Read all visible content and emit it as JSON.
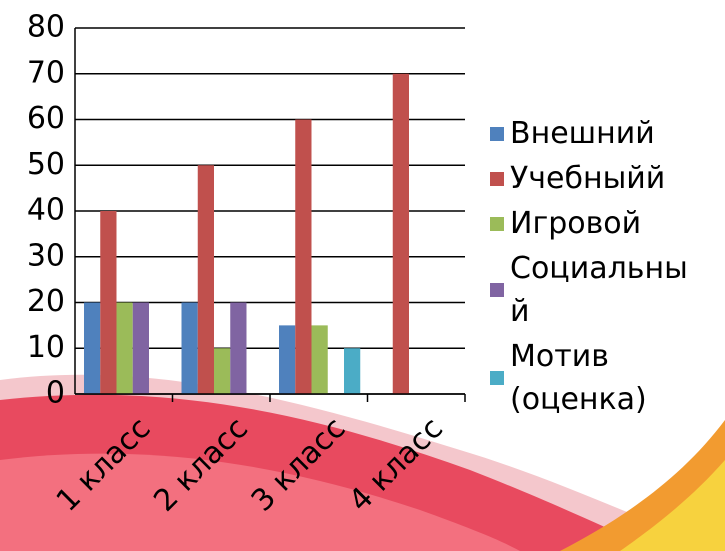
{
  "chart_data": {
    "type": "bar",
    "categories": [
      "1 класс",
      "2 класс",
      "3 класс",
      "4 класс"
    ],
    "series": [
      {
        "name": "Внешний",
        "color": "#4f81bd",
        "values": [
          20,
          20,
          15,
          0
        ]
      },
      {
        "name": "Учебныйй",
        "color": "#c0504d",
        "values": [
          40,
          50,
          60,
          70
        ]
      },
      {
        "name": "Игровой",
        "color": "#9bbb59",
        "values": [
          20,
          10,
          15,
          0
        ]
      },
      {
        "name": "Социальный",
        "color": "#8064a2",
        "values": [
          20,
          20,
          0,
          0
        ]
      },
      {
        "name": "Мотив (оценка)",
        "color": "#4bacc6",
        "values": [
          0,
          0,
          10,
          0
        ]
      }
    ],
    "ylim": [
      0,
      80
    ],
    "yticks": [
      0,
      10,
      20,
      30,
      40,
      50,
      60,
      70,
      80
    ],
    "grid": true,
    "legend": "right"
  }
}
